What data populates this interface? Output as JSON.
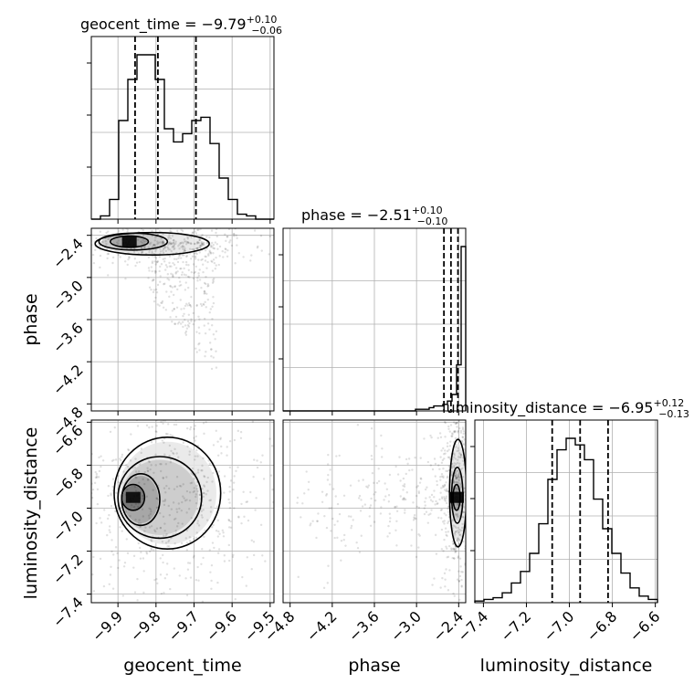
{
  "chart_data": {
    "type": "corner",
    "parameters": [
      {
        "name": "geocent_time",
        "axis_label": "geocent_time",
        "range": [
          -9.97,
          -9.49
        ],
        "ticks": [
          -9.9,
          -9.8,
          -9.7,
          -9.6,
          -9.5
        ],
        "tick_labels": [
          "−9.9",
          "−9.8",
          "−9.7",
          "−9.6",
          "−9.5"
        ],
        "summary": {
          "prefix": "geocent_time = ",
          "median": "−9.79",
          "plus": "+0.10",
          "minus": "−0.06"
        },
        "quantile_lines": [
          -9.855,
          -9.795,
          -9.695
        ],
        "histogram": {
          "edges_start": -9.97,
          "bin_width": 0.024,
          "counts": [
            0,
            2,
            12,
            60,
            85,
            100,
            100,
            85,
            55,
            47,
            52,
            60,
            62,
            46,
            25,
            12,
            3,
            2,
            0,
            0
          ]
        }
      },
      {
        "name": "phase",
        "axis_label": "phase",
        "range": [
          -4.9,
          -2.3
        ],
        "ticks": [
          -4.8,
          -4.2,
          -3.6,
          -3.0,
          -2.4
        ],
        "tick_labels": [
          "−4.8",
          "−4.2",
          "−3.6",
          "−3.0",
          "−2.4"
        ],
        "summary": {
          "prefix": "phase = ",
          "median": "−2.51",
          "plus": "+0.10",
          "minus": "−0.10"
        },
        "quantile_lines": [
          -2.61,
          -2.51,
          -2.41
        ],
        "histogram": {
          "edges_start": -4.9,
          "bin_width": 0.065,
          "counts": [
            0,
            0,
            0,
            0,
            0,
            0,
            0,
            0,
            0,
            0,
            0,
            0,
            0,
            0,
            0,
            0,
            0,
            0,
            0,
            0,
            0,
            0,
            0,
            0,
            0,
            0,
            0,
            0,
            0,
            1,
            1,
            1,
            2,
            3,
            3,
            4,
            6,
            10,
            28,
            100
          ]
        }
      },
      {
        "name": "luminosity_distance",
        "axis_label": "luminosity_distance",
        "range": [
          -7.44,
          -6.59
        ],
        "ticks": [
          -7.4,
          -7.2,
          -7.0,
          -6.8,
          -6.6
        ],
        "tick_labels": [
          "−7.4",
          "−7.2",
          "−7.0",
          "−6.8",
          "−6.6"
        ],
        "summary": {
          "prefix": "luminosity_distance = ",
          "median": "−6.95",
          "plus": "+0.12",
          "minus": "−0.13"
        },
        "quantile_lines": [
          -7.08,
          -6.95,
          -6.82
        ],
        "histogram": {
          "edges_start": -7.44,
          "bin_width": 0.0425,
          "counts": [
            1,
            2,
            3,
            6,
            12,
            19,
            30,
            48,
            75,
            93,
            100,
            96,
            87,
            63,
            45,
            30,
            18,
            9,
            4,
            2
          ]
        }
      }
    ],
    "contours": {
      "phase_vs_geocent_time": [
        {
          "level": 1,
          "center": [
            -9.87,
            -2.49
          ],
          "radius": [
            0.05,
            0.08
          ]
        },
        {
          "level": 2,
          "center": [
            -9.86,
            -2.49
          ],
          "radius": [
            0.09,
            0.12
          ]
        },
        {
          "level": 3,
          "center": [
            -9.81,
            -2.52
          ],
          "radius": [
            0.15,
            0.16
          ]
        }
      ],
      "luminosity_distance_vs_geocent_time": [
        {
          "level": 1,
          "center": [
            -9.86,
            -6.95
          ],
          "radius": [
            0.03,
            0.06
          ]
        },
        {
          "level": 2,
          "center": [
            -9.84,
            -6.96
          ],
          "radius": [
            0.05,
            0.12
          ]
        },
        {
          "level": 3,
          "center": [
            -9.79,
            -6.95
          ],
          "radius": [
            0.11,
            0.19
          ]
        },
        {
          "level": 4,
          "center": [
            -9.77,
            -6.93
          ],
          "radius": [
            0.14,
            0.26
          ]
        }
      ],
      "luminosity_distance_vs_phase": [
        {
          "level": 1,
          "center": [
            -2.43,
            -6.95
          ],
          "radius": [
            0.05,
            0.06
          ]
        },
        {
          "level": 2,
          "center": [
            -2.42,
            -6.94
          ],
          "radius": [
            0.08,
            0.13
          ]
        },
        {
          "level": 3,
          "center": [
            -2.41,
            -6.93
          ],
          "radius": [
            0.12,
            0.25
          ]
        }
      ]
    },
    "grid": true
  }
}
